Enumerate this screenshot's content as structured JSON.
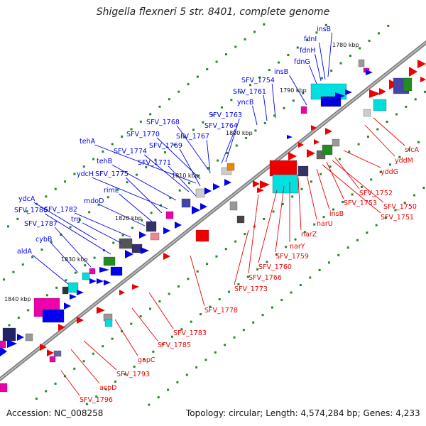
{
  "title": "Shigella flexneri 5 str. 8401, complete genome",
  "accession": "Accession: NC_008258",
  "topology": "Topology: circular; Length: 4,574,284 bp; Genes: 4,233",
  "colors": {
    "forward_strand": "#0000ee",
    "reverse_strand": "#ee0000",
    "rna": "#00e5e5",
    "backbone": "#888888",
    "gc_dots": "#228b22"
  },
  "kbp_ticks": [
    "1780 kbp",
    "1790 kbp",
    "1800 kbp",
    "1810 kbp",
    "1820 kbp",
    "1830 kbp",
    "1840 kbp"
  ],
  "forward_labels": [
    "insB",
    "fdnI",
    "fdnH",
    "fdnG",
    "insB",
    "SFV_1754",
    "SFV_1761",
    "yncB",
    "SFV_1763",
    "SFV_1764",
    "SFV_1768",
    "SFV_1767",
    "SFV_1770",
    "tehA",
    "SFV_1769",
    "SFV_1774",
    "SFV_1771",
    "tehB",
    "ydcH",
    "SFV_1775",
    "rimL",
    "mdoD",
    "ydcA",
    "SFV_1786",
    "SFV_1782",
    "trg",
    "SFV_1787",
    "cybB",
    "aldA"
  ],
  "reverse_labels": [
    "sfcA",
    "yddM",
    "yddG",
    "SFV_1752",
    "SFV_1750",
    "SFV_1753",
    "SFV_1751",
    "insB",
    "narU",
    "narZ",
    "narY",
    "SFV_1759",
    "SFV_1760",
    "SFV_1766",
    "SFV_1773",
    "SFV_1778",
    "SFV_1783",
    "SFV_1785",
    "gapC",
    "SFV_1793",
    "acpD",
    "SFV_1796"
  ]
}
